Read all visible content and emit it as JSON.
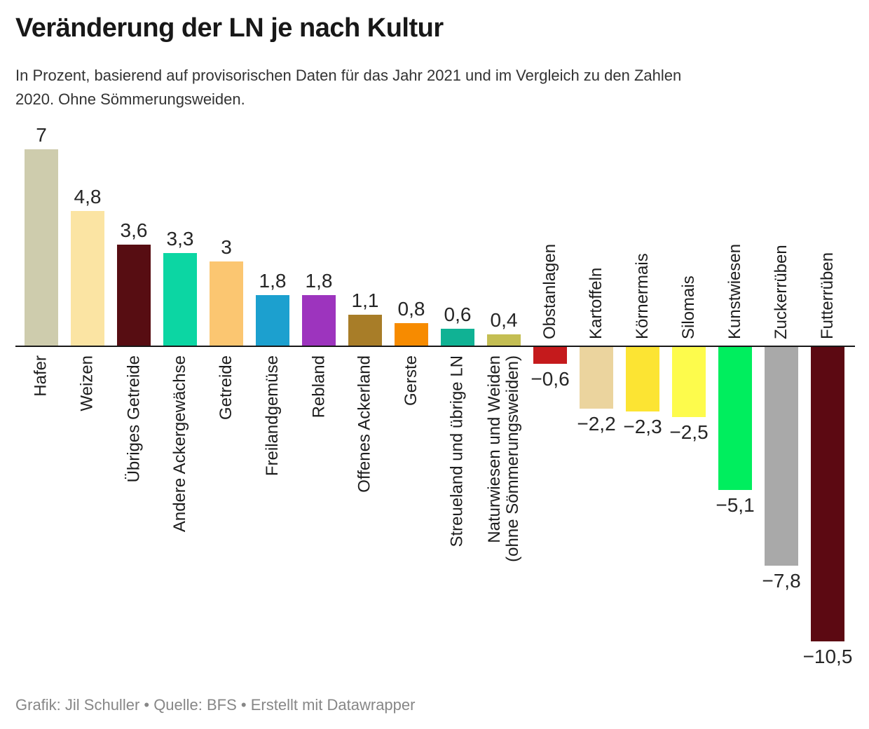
{
  "header": {
    "title": "Veränderung der LN je nach Kultur",
    "subtitle_line1": "In Prozent, basierend auf provisorischen Daten für das Jahr 2021 und im Vergleich zu den Zahlen",
    "subtitle_line2": "2020. Ohne Sömmerungsweiden."
  },
  "footer": {
    "credit": "Grafik: Jil Schuller • Quelle: BFS • Erstellt mit Datawrapper"
  },
  "chart_data": {
    "type": "bar",
    "title": "Veränderung der LN je nach Kultur",
    "unit": "%",
    "orientation": "vertical-columns",
    "grid": false,
    "legend": "none",
    "value_axis": {
      "min": -10.5,
      "max": 7,
      "baseline": 0,
      "ticks_visible": false
    },
    "categories": [
      "Hafer",
      "Weizen",
      "Übriges Getreide",
      "Andere Ackergewächse",
      "Getreide",
      "Freilandgemüse",
      "Rebland",
      "Offenes Ackerland",
      "Gerste",
      "Streueland und übrige LN",
      "Naturwiesen und Weiden\n(ohne Sömmerungsweiden)",
      "Obstanlagen",
      "Kartoffeln",
      "Körnermais",
      "Silomais",
      "Kunstwiesen",
      "Zuckerrüben",
      "Futterrüben"
    ],
    "values": [
      7,
      4.8,
      3.6,
      3.3,
      3,
      1.8,
      1.8,
      1.1,
      0.8,
      0.6,
      0.4,
      -0.6,
      -2.2,
      -2.3,
      -2.5,
      -5.1,
      -7.8,
      -10.5
    ],
    "value_labels": [
      "7",
      "4,8",
      "3,6",
      "3,3",
      "3",
      "1,8",
      "1,8",
      "1,1",
      "0,8",
      "0,6",
      "0,4",
      "−0,6",
      "−2,2",
      "−2,3",
      "−2,5",
      "−5,1",
      "−7,8",
      "−10,5"
    ],
    "colors": [
      "#CECCAD",
      "#FBE4A3",
      "#570D12",
      "#0CD6A3",
      "#FBC671",
      "#1CA0CF",
      "#9D34BE",
      "#A87D28",
      "#F78B00",
      "#10B294",
      "#C4BE53",
      "#C51A1C",
      "#EBD49E",
      "#FCE433",
      "#FDFB4C",
      "#00EE5E",
      "#A9A9A9",
      "#5C0912"
    ],
    "axis_color": "#181818"
  }
}
